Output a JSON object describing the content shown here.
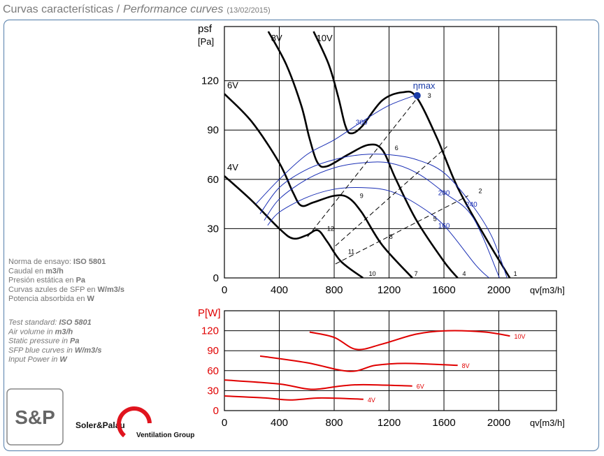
{
  "header": {
    "title": "Curvas características /",
    "subtitle": "Performance curves",
    "date": "(13/02/2015)"
  },
  "notes_es": [
    {
      "text": "Norma de ensayo:",
      "bold": "ISO 5801"
    },
    {
      "text": "Caudal en",
      "bold": "m3/h"
    },
    {
      "text": "Presión estática en",
      "bold": "Pa"
    },
    {
      "text": "Curvas azules de SFP en",
      "bold": "W/m3/s"
    },
    {
      "text": "Potencia absorbida en",
      "bold": "W"
    }
  ],
  "notes_en": [
    {
      "text": "Test standard:",
      "bold": "ISO 5801"
    },
    {
      "text": "Air volume in",
      "bold": "m3/h"
    },
    {
      "text": "Static pressure in",
      "bold": "Pa"
    },
    {
      "text": "SFP blue curves in",
      "bold": "W/m3/s"
    },
    {
      "text": "Input Power in",
      "bold": "W"
    }
  ],
  "logo": {
    "mark": "S&P",
    "brand": "Soler&Palau",
    "group": "Ventilation Group"
  },
  "chart_data": [
    {
      "type": "line",
      "y_label": "psf",
      "y_unit": "[Pa]",
      "x_label": "qv[m3/h]",
      "xlim": [
        0,
        2420
      ],
      "ylim": [
        0,
        153
      ],
      "xticks": [
        0,
        400,
        800,
        1200,
        1600,
        2000
      ],
      "yticks": [
        0,
        30,
        60,
        90,
        120
      ],
      "grid": true,
      "series": [
        {
          "name": "4V",
          "color": "#000000",
          "x": [
            0,
            200,
            400,
            500,
            600,
            680,
            750,
            850,
            1010
          ],
          "values": [
            62,
            47,
            30,
            24,
            26,
            29,
            22,
            10,
            0
          ]
        },
        {
          "name": "6V",
          "color": "#000000",
          "x": [
            0,
            200,
            400,
            500,
            560,
            650,
            800,
            900,
            1000,
            1150,
            1370
          ],
          "values": [
            112,
            95,
            70,
            52,
            44,
            46,
            50,
            49,
            40,
            20,
            0
          ]
        },
        {
          "name": "8V",
          "color": "#000000",
          "x": [
            320,
            450,
            560,
            620,
            680,
            750,
            900,
            1050,
            1150,
            1250,
            1400,
            1600,
            1700
          ],
          "values": [
            150,
            130,
            105,
            85,
            70,
            68,
            75,
            81,
            78,
            60,
            35,
            10,
            0
          ]
        },
        {
          "name": "10V",
          "color": "#000000",
          "x": [
            650,
            760,
            830,
            880,
            920,
            1000,
            1150,
            1300,
            1400,
            1550,
            1700,
            1900,
            2080
          ],
          "values": [
            150,
            130,
            110,
            93,
            88,
            92,
            108,
            113,
            110,
            85,
            55,
            25,
            0
          ]
        },
        {
          "name": "300",
          "color": "#1a2fb5",
          "x": [
            230,
            400,
            600,
            800,
            1000,
            1200,
            1420
          ],
          "values": [
            45,
            60,
            75,
            84,
            95,
            105,
            112
          ]
        },
        {
          "name": "240",
          "color": "#1a2fb5",
          "x": [
            260,
            400,
            600,
            800,
            1000,
            1200,
            1400,
            1600,
            1800,
            1950,
            2060
          ],
          "values": [
            39,
            55,
            66,
            72,
            75,
            75,
            72,
            64,
            45,
            25,
            0
          ]
        },
        {
          "name": "200",
          "color": "#1a2fb5",
          "x": [
            290,
            400,
            600,
            800,
            1000,
            1200,
            1400,
            1600,
            1810,
            2005
          ],
          "values": [
            35,
            48,
            60,
            67,
            70,
            70,
            64,
            52,
            37,
            0
          ]
        },
        {
          "name": "160",
          "color": "#1a2fb5",
          "x": [
            315,
            400,
            600,
            800,
            1000,
            1200,
            1400,
            1600,
            1830,
            1929
          ],
          "values": [
            32,
            40,
            49,
            54,
            55,
            53,
            45,
            32,
            8,
            0
          ]
        },
        {
          "color": "#000000",
          "dash": true,
          "x": [
            606,
            1420
          ],
          "values": [
            25,
            111
          ]
        },
        {
          "color": "#000000",
          "dash": true,
          "x": [
            809,
            1623
          ],
          "values": [
            19.5,
            80
          ]
        },
        {
          "color": "#000000",
          "dash": true,
          "x": [
            809,
            1776
          ],
          "values": [
            8.5,
            50
          ]
        }
      ],
      "annotations": [
        {
          "text": "1",
          "x": 2107,
          "y": 2.5
        },
        {
          "text": "2",
          "x": 1852,
          "y": 53
        },
        {
          "text": "3",
          "x": 1481,
          "y": 111
        },
        {
          "text": "4",
          "x": 1735,
          "y": 2.5
        },
        {
          "text": "5",
          "x": 1522,
          "y": 36
        },
        {
          "text": "6",
          "x": 1242,
          "y": 79
        },
        {
          "text": "7",
          "x": 1384,
          "y": 2.5
        },
        {
          "text": "8",
          "x": 1201,
          "y": 25
        },
        {
          "text": "9",
          "x": 987,
          "y": 50
        },
        {
          "text": "10",
          "x": 1053,
          "y": 2.5
        },
        {
          "text": "11",
          "x": 901,
          "y": 16
        },
        {
          "text": "12",
          "x": 748,
          "y": 30
        }
      ],
      "eta_max": {
        "label": "ηmax",
        "x": 1405,
        "y": 111,
        "color": "#1a3ca8"
      }
    },
    {
      "type": "line",
      "y_label": "P[W]",
      "x_label": "qv[m3/h]",
      "xlim": [
        0,
        2420
      ],
      "ylim": [
        0,
        150
      ],
      "xticks": [
        0,
        400,
        800,
        1200,
        1600,
        2000
      ],
      "yticks": [
        0,
        30,
        60,
        90,
        120
      ],
      "grid": true,
      "tick_color": "#e00000",
      "series": [
        {
          "name": "10V",
          "color": "#e00000",
          "x": [
            621,
            800,
            962,
            1150,
            1400,
            1628,
            1900,
            2081
          ],
          "values": [
            118,
            110,
            92,
            100,
            115,
            120,
            118,
            112
          ]
        },
        {
          "name": "8V",
          "color": "#e00000",
          "x": [
            260,
            600,
            911,
            1100,
            1318,
            1700
          ],
          "values": [
            82,
            72,
            59,
            68,
            71,
            68
          ]
        },
        {
          "name": "6V",
          "color": "#e00000",
          "x": [
            0,
            400,
            631,
            850,
            1013,
            1369
          ],
          "values": [
            46,
            40,
            32,
            37,
            39,
            37
          ]
        },
        {
          "name": "4V",
          "color": "#e00000",
          "x": [
            0,
            300,
            478,
            707,
            1013
          ],
          "values": [
            22,
            19,
            16,
            19,
            17
          ]
        }
      ]
    }
  ]
}
